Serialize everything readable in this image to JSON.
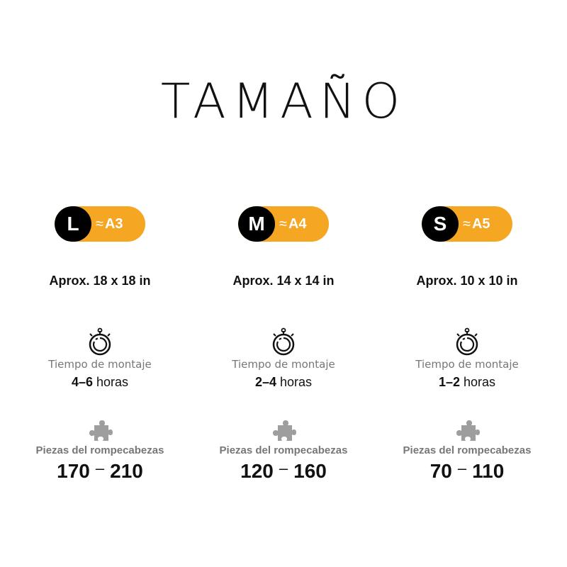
{
  "title": "TAMAÑO",
  "colors": {
    "accent": "#f5a623",
    "badge_dark": "#000000",
    "muted_text": "#777777"
  },
  "icons": {
    "time": "stopwatch-icon",
    "pieces": "puzzle-piece-icon"
  },
  "sizes": [
    {
      "letter": "L",
      "approx_symbol": "≈",
      "paper": "A3",
      "dimensions": "Aprox. 18 x 18 in",
      "time_label": "Tiempo de montaje",
      "time_range": "4–6",
      "time_unit": "horas",
      "pieces_label": "Piezas del rompecabezas",
      "pieces_min": "170",
      "pieces_sep": "–",
      "pieces_max": "210"
    },
    {
      "letter": "M",
      "approx_symbol": "≈",
      "paper": "A4",
      "dimensions": "Aprox. 14 x 14 in",
      "time_label": "Tiempo de montaje",
      "time_range": "2–4",
      "time_unit": "horas",
      "pieces_label": "Piezas del rompecabezas",
      "pieces_min": "120",
      "pieces_sep": "–",
      "pieces_max": "160"
    },
    {
      "letter": "S",
      "approx_symbol": "≈",
      "paper": "A5",
      "dimensions": "Aprox. 10 x 10 in",
      "time_label": "Tiempo de montaje",
      "time_range": "1–2",
      "time_unit": "horas",
      "pieces_label": "Piezas del rompecabezas",
      "pieces_min": "70",
      "pieces_sep": "–",
      "pieces_max": "110"
    }
  ]
}
